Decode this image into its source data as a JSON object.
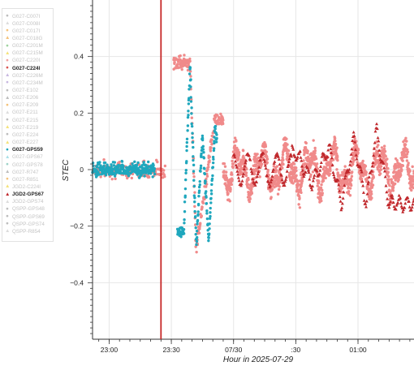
{
  "chart_data": {
    "type": "scatter",
    "title": "",
    "xlabel": "Hour in 2025-07-29",
    "ylabel": "STEC",
    "x_range": [
      "22:52",
      "01:27"
    ],
    "ylim": [
      -0.6,
      0.6
    ],
    "xticks": [
      {
        "time": "23:00",
        "label": "23:00"
      },
      {
        "time": "23:30",
        "label": "23:30"
      },
      {
        "time": "00:00",
        "label": "07/30"
      },
      {
        "time": "00:30",
        "label": ":30"
      },
      {
        "time": "01:00",
        "label": "01:00"
      }
    ],
    "yticks": [
      0.4,
      0.2,
      0,
      -0.2,
      -0.4
    ],
    "ytick_labels": [
      "0.4",
      "0.2",
      "0",
      "−0.2",
      "−0.4"
    ],
    "grid": true,
    "vertical_marker": {
      "time": "23:25",
      "color": "#c62828"
    },
    "legend_position": "left",
    "series": [
      {
        "name": "G027-GPS59",
        "color": "#1fa7bd",
        "marker": "circle",
        "highlighted": true,
        "segments": [
          {
            "start": "22:52",
            "end": "23:22",
            "description": "noise around 0"
          },
          {
            "start": "23:33",
            "end": "23:52",
            "description": "wave packet"
          }
        ],
        "points": [
          [
            "23:36",
            -0.22
          ],
          [
            "23:39",
            0.37
          ],
          [
            "23:42",
            -0.27
          ],
          [
            "23:45",
            0.12
          ],
          [
            "23:48",
            -0.26
          ],
          [
            "23:51",
            0.15
          ],
          [
            "23:54",
            0.0
          ]
        ]
      },
      {
        "name": "G027-C224I",
        "color": "#f08a8a",
        "marker": "circle",
        "highlighted": true,
        "segments": [
          {
            "start": "22:52",
            "end": "23:27"
          },
          {
            "start": "23:31",
            "end": "23:55"
          },
          {
            "start": "23:55",
            "end": "01:27"
          }
        ],
        "points": [
          [
            "23:39",
            0.38
          ],
          [
            "23:42",
            -0.28
          ],
          [
            "23:51",
            0.18
          ]
        ]
      },
      {
        "name": "JGD2-GPS67",
        "color": "#c0282c",
        "marker": "triangle",
        "highlighted": true,
        "segments": [
          {
            "start": "00:00",
            "end": "01:27",
            "description": "oscillations"
          }
        ],
        "points": [
          [
            "00:30",
            0.06
          ],
          [
            "00:38",
            -0.05
          ],
          [
            "00:46",
            0.08
          ],
          [
            "00:52",
            -0.12
          ],
          [
            "00:58",
            0.11
          ],
          [
            "01:04",
            -0.12
          ],
          [
            "01:09",
            0.14
          ],
          [
            "01:15",
            -0.12
          ]
        ]
      }
    ]
  },
  "legend": {
    "items": [
      {
        "label": "G027-C007I",
        "color": "#bdbdbd",
        "marker": "circle",
        "strong": false
      },
      {
        "label": "G027-C008I",
        "color": "#dcdcdc",
        "marker": "triangle",
        "strong": false
      },
      {
        "label": "G027-C017I",
        "color": "#f4c27a",
        "marker": "circle",
        "strong": false
      },
      {
        "label": "G027-C018G",
        "color": "#f4c27a",
        "marker": "triangle",
        "strong": false
      },
      {
        "label": "G027-C201M",
        "color": "#9fd39f",
        "marker": "circle",
        "strong": false
      },
      {
        "label": "G027-C215M",
        "color": "#f4e27a",
        "marker": "triangle",
        "strong": false
      },
      {
        "label": "G027-C220I",
        "color": "#f0a0a0",
        "marker": "circle",
        "strong": false
      },
      {
        "label": "G027-C224I",
        "color": "#d9534f",
        "marker": "circle",
        "strong": true
      },
      {
        "label": "G027-C226M",
        "color": "#c8b8e0",
        "marker": "triangle",
        "strong": false
      },
      {
        "label": "G027-C234M",
        "color": "#c8b8e0",
        "marker": "circle",
        "strong": false
      },
      {
        "label": "G027-E102",
        "color": "#bdbdbd",
        "marker": "circle",
        "strong": false
      },
      {
        "label": "G027-E206",
        "color": "#bdbdbd",
        "marker": "triangle",
        "strong": false
      },
      {
        "label": "G027-E209",
        "color": "#f4c27a",
        "marker": "circle",
        "strong": false
      },
      {
        "label": "G027-E211",
        "color": "#dcdcdc",
        "marker": "triangle",
        "strong": false
      },
      {
        "label": "G027-E215",
        "color": "#bdbdbd",
        "marker": "circle",
        "strong": false
      },
      {
        "label": "G027-E219",
        "color": "#f4e27a",
        "marker": "triangle",
        "strong": false
      },
      {
        "label": "G027-E224",
        "color": "#bdbdbd",
        "marker": "circle",
        "strong": false
      },
      {
        "label": "G027-E227",
        "color": "#f4e27a",
        "marker": "triangle",
        "strong": false
      },
      {
        "label": "G027-GPS59",
        "color": "#1fa7bd",
        "marker": "circle",
        "strong": true
      },
      {
        "label": "G027-GPS67",
        "color": "#a8dfe7",
        "marker": "triangle",
        "strong": false
      },
      {
        "label": "G027-GPS78",
        "color": "#9fd3c8",
        "marker": "circle",
        "strong": false
      },
      {
        "label": "G027-R747",
        "color": "#bdbdbd",
        "marker": "triangle",
        "strong": false
      },
      {
        "label": "G027-R851",
        "color": "#f4c27a",
        "marker": "circle",
        "strong": false
      },
      {
        "label": "JGD2-C224I",
        "color": "#f4e27a",
        "marker": "triangle",
        "strong": false
      },
      {
        "label": "JGD2-GPS67",
        "color": "#c0282c",
        "marker": "triangle",
        "strong": true
      },
      {
        "label": "JGD2-GPS74",
        "color": "#dcdcdc",
        "marker": "triangle",
        "strong": false
      },
      {
        "label": "QSPP-GPS48",
        "color": "#bdbdbd",
        "marker": "circle",
        "strong": false
      },
      {
        "label": "QSPP-GPS69",
        "color": "#bdbdbd",
        "marker": "circle",
        "strong": false
      },
      {
        "label": "QSPP-GPS74",
        "color": "#bdbdbd",
        "marker": "circle",
        "strong": false
      },
      {
        "label": "QSPP-R854",
        "color": "#dcdcdc",
        "marker": "triangle",
        "strong": false
      }
    ]
  }
}
